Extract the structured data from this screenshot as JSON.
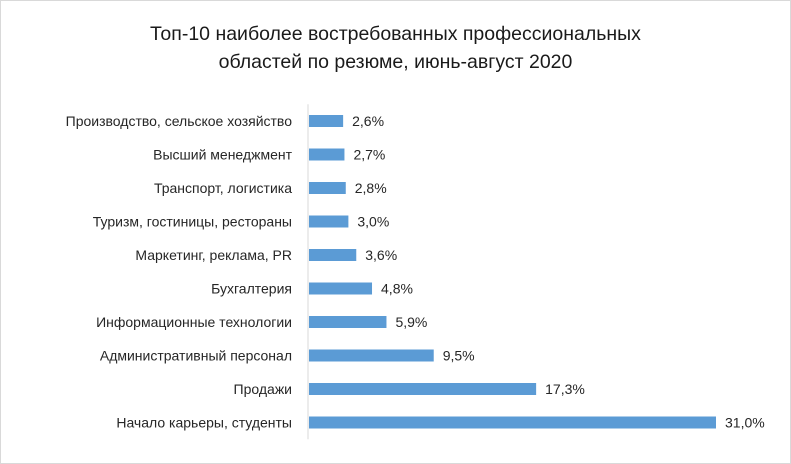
{
  "chart_data": {
    "type": "bar",
    "orientation": "horizontal",
    "title_line1": "Топ-10 наиболее востребованных профессиональных",
    "title_line2": "областей по резюме, июнь-август 2020",
    "categories": [
      "Производство, сельское хозяйство",
      "Высший менеджмент",
      "Транспорт, логистика",
      "Туризм, гостиницы, рестораны",
      "Маркетинг, реклама, PR",
      "Бухгалтерия",
      "Информационные технологии",
      "Административный персонал",
      "Продажи",
      "Начало карьеры, студенты"
    ],
    "values": [
      2.6,
      2.7,
      2.8,
      3.0,
      3.6,
      4.8,
      5.9,
      9.5,
      17.3,
      31.0
    ],
    "value_labels": [
      "2,6%",
      "2,7%",
      "2,8%",
      "3,0%",
      "3,6%",
      "4,8%",
      "5,9%",
      "9,5%",
      "17,3%",
      "31,0%"
    ],
    "unit": "%",
    "xlim": [
      0,
      31.0
    ],
    "grid": false,
    "legend": "none",
    "bar_color": "#5b9bd5"
  }
}
